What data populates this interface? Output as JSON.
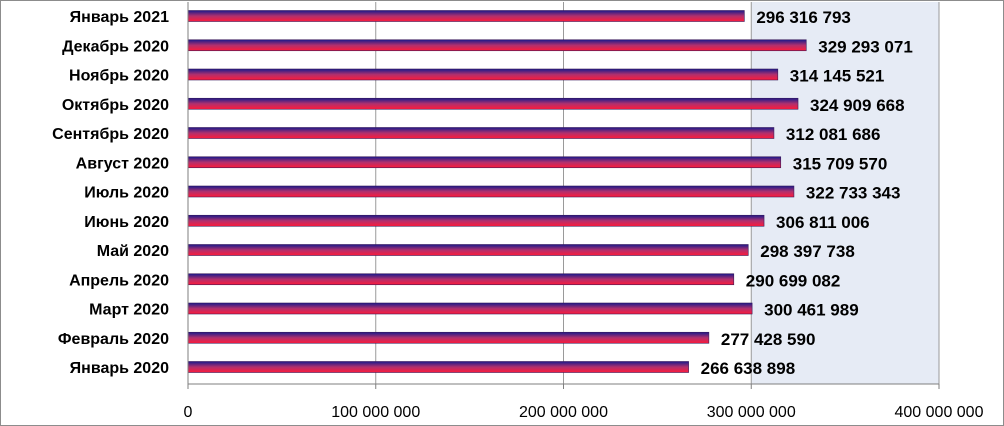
{
  "chart_data": {
    "type": "bar",
    "orientation": "horizontal",
    "categories": [
      "Январь 2021",
      "Декабрь 2020",
      "Ноябрь 2020",
      "Октябрь 2020",
      "Сентябрь 2020",
      "Август 2020",
      "Июль 2020",
      "Июнь 2020",
      "Май 2020",
      "Апрель 2020",
      "Март 2020",
      "Февраль 2020",
      "Январь 2020"
    ],
    "values": [
      296316793,
      329293071,
      314145521,
      324909668,
      312081686,
      315709570,
      322733343,
      306811006,
      298397738,
      290699082,
      300461989,
      277428590,
      266638898
    ],
    "data_labels": [
      "296 316 793",
      "329 293 071",
      "314 145 521",
      "324 909 668",
      "312 081 686",
      "315 709 570",
      "322 733 343",
      "306 811 006",
      "298 397 738",
      "290 699 082",
      "300 461 989",
      "277 428 590",
      "266 638 898"
    ],
    "x_ticks": [
      0,
      100000000,
      200000000,
      300000000,
      400000000
    ],
    "x_tick_labels": [
      "0",
      "100 000 000",
      "200 000 000",
      "300 000 000",
      "400 000 000"
    ],
    "xlim": [
      0,
      400000000
    ],
    "grid": "vertical",
    "colors": {
      "bar_top": "#1a1a8c",
      "bar_mid": "#b0306e",
      "bar_bottom": "#ff1a3a",
      "plot_shade": "#e6ebf5",
      "gridline": "#9a9a9a",
      "axis": "#7f7f7f"
    }
  }
}
